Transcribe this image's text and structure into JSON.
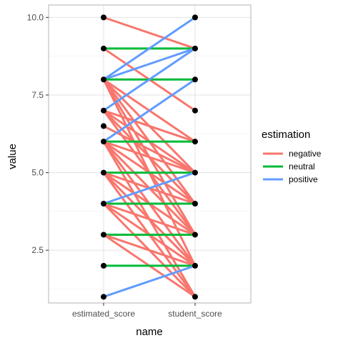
{
  "chart_data": {
    "type": "line",
    "xlabel": "name",
    "ylabel": "value",
    "categories": [
      "estimated_score",
      "student_score"
    ],
    "ylim": [
      0.8,
      10.4
    ],
    "yticks": [
      2.5,
      5.0,
      7.5,
      10.0
    ],
    "ytick_labels": [
      "2.5",
      "5.0",
      "7.5",
      "10.0"
    ],
    "legend": {
      "title": "estimation",
      "placement": "right",
      "entries": [
        {
          "label": "negative",
          "color": "#F8766D"
        },
        {
          "label": "neutral",
          "color": "#00BA38"
        },
        {
          "label": "positive",
          "color": "#619CFF"
        }
      ]
    },
    "grid": true,
    "pairs": [
      {
        "estimated_score": 10,
        "student_score": 9,
        "estimation": "negative"
      },
      {
        "estimated_score": 9,
        "student_score": 9,
        "estimation": "neutral"
      },
      {
        "estimated_score": 9,
        "student_score": 7,
        "estimation": "negative"
      },
      {
        "estimated_score": 8,
        "student_score": 10,
        "estimation": "positive"
      },
      {
        "estimated_score": 8,
        "student_score": 9,
        "estimation": "positive"
      },
      {
        "estimated_score": 8,
        "student_score": 8,
        "estimation": "neutral"
      },
      {
        "estimated_score": 8,
        "student_score": 6,
        "estimation": "negative"
      },
      {
        "estimated_score": 8,
        "student_score": 5,
        "estimation": "negative"
      },
      {
        "estimated_score": 8,
        "student_score": 4,
        "estimation": "negative"
      },
      {
        "estimated_score": 8,
        "student_score": 3,
        "estimation": "negative"
      },
      {
        "estimated_score": 8,
        "student_score": 2,
        "estimation": "negative"
      },
      {
        "estimated_score": 7,
        "student_score": 9,
        "estimation": "positive"
      },
      {
        "estimated_score": 7,
        "student_score": 6,
        "estimation": "negative"
      },
      {
        "estimated_score": 7,
        "student_score": 5,
        "estimation": "negative"
      },
      {
        "estimated_score": 7,
        "student_score": 4,
        "estimation": "negative"
      },
      {
        "estimated_score": 7,
        "student_score": 3,
        "estimation": "negative"
      },
      {
        "estimated_score": 6.5,
        "student_score": 5,
        "estimation": "negative"
      },
      {
        "estimated_score": 6,
        "student_score": 8,
        "estimation": "positive"
      },
      {
        "estimated_score": 6,
        "student_score": 6,
        "estimation": "neutral"
      },
      {
        "estimated_score": 6,
        "student_score": 5,
        "estimation": "negative"
      },
      {
        "estimated_score": 6,
        "student_score": 4,
        "estimation": "negative"
      },
      {
        "estimated_score": 6,
        "student_score": 3,
        "estimation": "negative"
      },
      {
        "estimated_score": 6,
        "student_score": 2,
        "estimation": "negative"
      },
      {
        "estimated_score": 6,
        "student_score": 1,
        "estimation": "negative"
      },
      {
        "estimated_score": 5,
        "student_score": 5,
        "estimation": "neutral"
      },
      {
        "estimated_score": 5,
        "student_score": 4,
        "estimation": "negative"
      },
      {
        "estimated_score": 5,
        "student_score": 3,
        "estimation": "negative"
      },
      {
        "estimated_score": 5,
        "student_score": 2,
        "estimation": "negative"
      },
      {
        "estimated_score": 5,
        "student_score": 1,
        "estimation": "negative"
      },
      {
        "estimated_score": 4,
        "student_score": 5,
        "estimation": "positive"
      },
      {
        "estimated_score": 4,
        "student_score": 4,
        "estimation": "neutral"
      },
      {
        "estimated_score": 4,
        "student_score": 3,
        "estimation": "negative"
      },
      {
        "estimated_score": 4,
        "student_score": 2,
        "estimation": "negative"
      },
      {
        "estimated_score": 4,
        "student_score": 1,
        "estimation": "negative"
      },
      {
        "estimated_score": 3,
        "student_score": 3,
        "estimation": "neutral"
      },
      {
        "estimated_score": 3,
        "student_score": 2,
        "estimation": "negative"
      },
      {
        "estimated_score": 3,
        "student_score": 1,
        "estimation": "negative"
      },
      {
        "estimated_score": 2,
        "student_score": 2,
        "estimation": "neutral"
      },
      {
        "estimated_score": 1,
        "student_score": 2,
        "estimation": "positive"
      }
    ]
  }
}
